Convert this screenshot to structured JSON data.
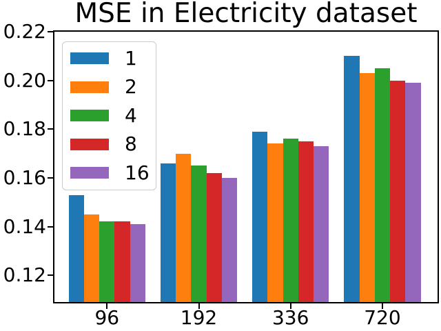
{
  "chart_data": {
    "type": "bar",
    "title": "MSE in Electricity dataset",
    "categories": [
      "96",
      "192",
      "336",
      "720"
    ],
    "series": [
      {
        "name": "1",
        "color": "#1f77b4",
        "values": [
          0.153,
          0.166,
          0.179,
          0.21
        ]
      },
      {
        "name": "2",
        "color": "#ff7f0e",
        "values": [
          0.145,
          0.17,
          0.174,
          0.203
        ]
      },
      {
        "name": "4",
        "color": "#2ca02c",
        "values": [
          0.142,
          0.165,
          0.176,
          0.205
        ]
      },
      {
        "name": "8",
        "color": "#d62728",
        "values": [
          0.142,
          0.162,
          0.175,
          0.2
        ]
      },
      {
        "name": "16",
        "color": "#9467bd",
        "values": [
          0.141,
          0.16,
          0.173,
          0.199
        ]
      }
    ],
    "ylim": [
      0.109,
      0.22
    ],
    "yticks": [
      0.12,
      0.14,
      0.16,
      0.18,
      0.2,
      0.22
    ],
    "ytick_labels": [
      "0.12",
      "0.14",
      "0.16",
      "0.18",
      "0.20",
      "0.22"
    ],
    "xlabel": "",
    "ylabel": "",
    "legend_position": "upper left",
    "grid": false,
    "axis_color": "#000000",
    "background_color": "#ffffff"
  }
}
